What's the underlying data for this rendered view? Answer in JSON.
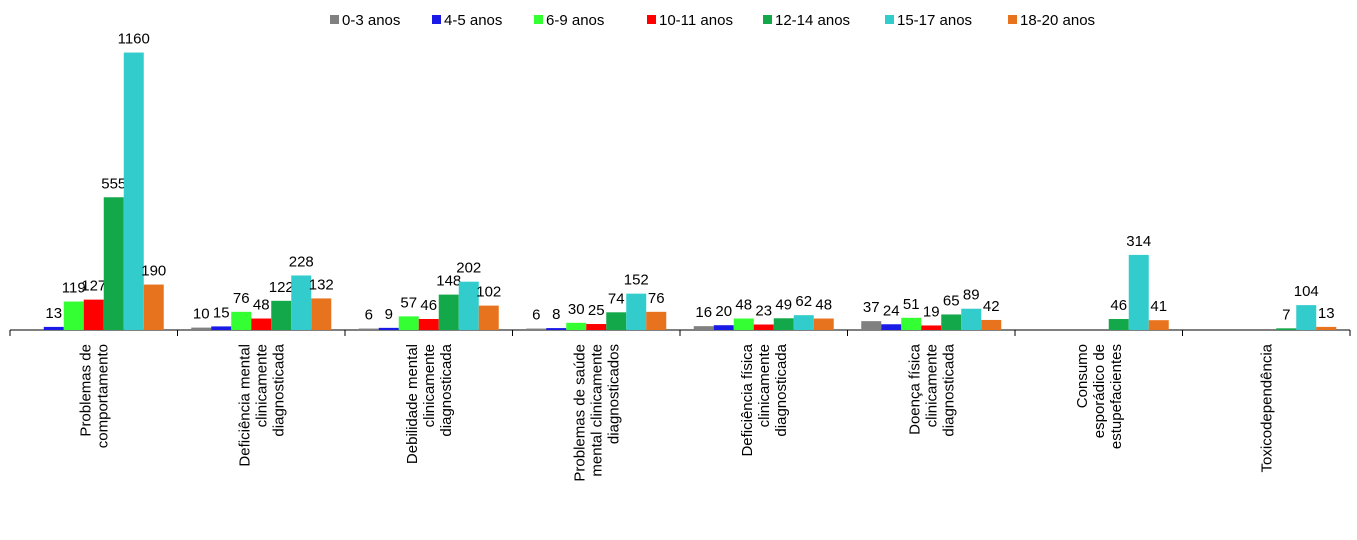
{
  "chart_data": {
    "type": "bar",
    "categories": [
      [
        "Problemas de",
        "comportamento"
      ],
      [
        "Deficiência mental",
        "clinicamente",
        "diagnosticada"
      ],
      [
        "Debilidade mental",
        "clinicamente",
        "diagnosticada"
      ],
      [
        "Problemas de saúde",
        "mental clinicamente",
        "diagnosticados"
      ],
      [
        "Deficiência física",
        "clinicamente",
        "diagnosticada"
      ],
      [
        "Doença física",
        "clinicamente",
        "diagnosticada"
      ],
      [
        "Consumo",
        "esporádico de",
        "estupefacientes"
      ],
      [
        "Toxicodependência"
      ]
    ],
    "series": [
      {
        "name": "0-3 anos",
        "color": "#808080",
        "values": [
          null,
          10,
          6,
          6,
          16,
          37,
          null,
          null
        ]
      },
      {
        "name": "4-5 anos",
        "color": "#1a1ae6",
        "values": [
          13,
          15,
          9,
          8,
          20,
          24,
          null,
          null
        ]
      },
      {
        "name": "6-9 anos",
        "color": "#33ff33",
        "values": [
          119,
          76,
          57,
          30,
          48,
          51,
          null,
          null
        ]
      },
      {
        "name": "10-11 anos",
        "color": "#ff0000",
        "values": [
          127,
          48,
          46,
          25,
          23,
          19,
          null,
          null
        ]
      },
      {
        "name": "12-14 anos",
        "color": "#13a84a",
        "values": [
          555,
          122,
          148,
          74,
          49,
          65,
          46,
          7
        ]
      },
      {
        "name": "15-17 anos",
        "color": "#33cccc",
        "values": [
          1160,
          228,
          202,
          152,
          62,
          89,
          314,
          104
        ]
      },
      {
        "name": "18-20 anos",
        "color": "#e8731e",
        "values": [
          190,
          132,
          102,
          76,
          48,
          42,
          41,
          13
        ]
      }
    ],
    "ylim": [
      0,
      1200
    ],
    "legend": "top"
  }
}
